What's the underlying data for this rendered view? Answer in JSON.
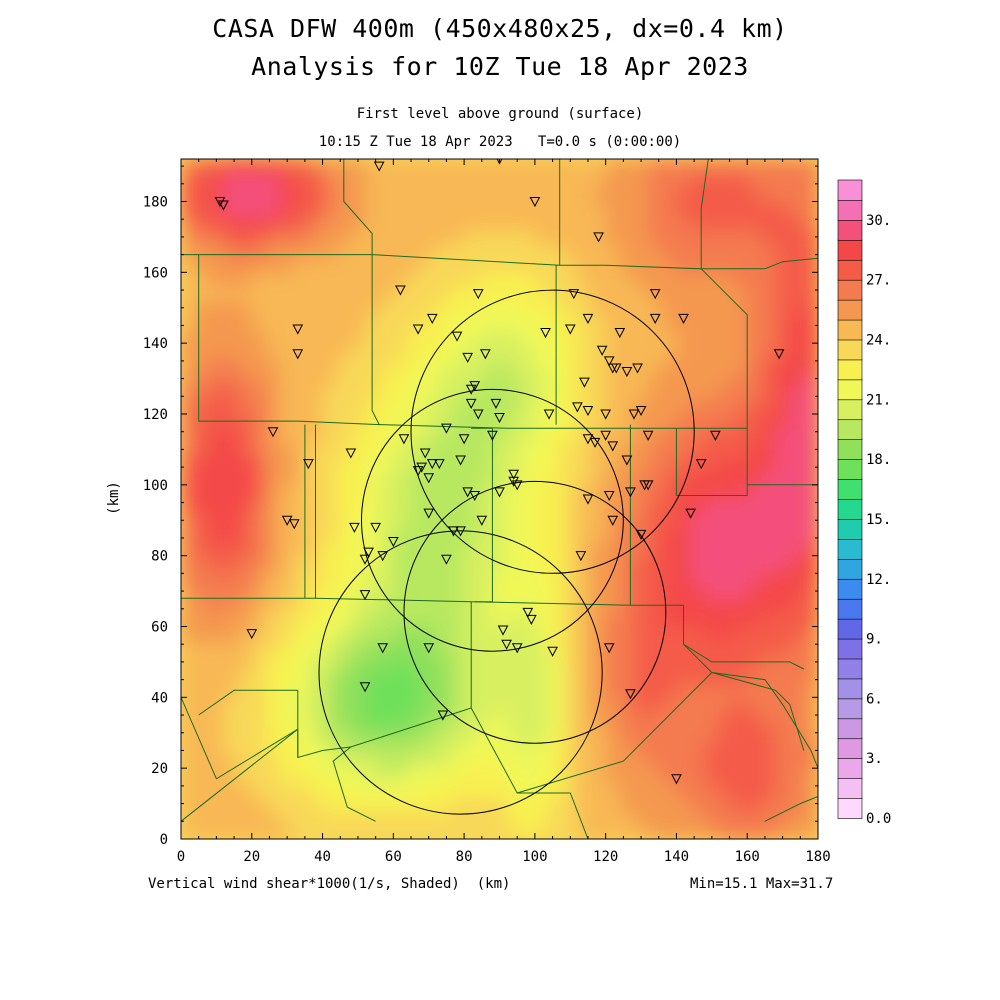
{
  "header": {
    "title_line1": "CASA DFW 400m (450x480x25, dx=0.4 km)",
    "title_line2": "Analysis for 10Z Tue 18 Apr 2023",
    "subtitle_line1": "First level above ground (surface)",
    "subtitle_line2": "10:15 Z Tue 18 Apr 2023   T=0.0 s (0:00:00)"
  },
  "footer": {
    "field_label": "Vertical wind shear*1000(1/s, Shaded)  (km)",
    "minmax": "Min=15.1 Max=31.7"
  },
  "chart_data": {
    "type": "heatmap",
    "title": "CASA DFW 400m (450x480x25, dx=0.4 km)",
    "variable": "Vertical wind shear*1000 (1/s)",
    "xlabel": "(km)",
    "ylabel": "(km)",
    "xlim": [
      0,
      180
    ],
    "ylim": [
      0,
      192
    ],
    "xticks": [
      0,
      20,
      40,
      60,
      80,
      100,
      120,
      140,
      160,
      180
    ],
    "yticks": [
      0,
      20,
      40,
      60,
      80,
      100,
      120,
      140,
      160,
      180
    ],
    "min": 15.1,
    "max": 31.7,
    "colorbar": {
      "labels": [
        "0.0",
        "3.",
        "6.",
        "9.",
        "12.",
        "15.",
        "18.",
        "21.",
        "24.",
        "27.",
        "30."
      ],
      "levels": [
        0,
        1,
        2,
        3,
        4,
        5,
        6,
        7,
        8,
        9,
        10,
        11,
        12,
        13,
        14,
        15,
        16,
        17,
        18,
        19,
        20,
        21,
        22,
        23,
        24,
        25,
        26,
        27,
        28,
        29,
        30,
        31
      ],
      "colors": [
        "#ffd8ff",
        "#f4c0f4",
        "#eaa8ea",
        "#df98e2",
        "#cc98e4",
        "#b69ae6",
        "#a391e8",
        "#9080e8",
        "#8070e6",
        "#6068e8",
        "#4a78ee",
        "#3c8cf0",
        "#30a6e0",
        "#28bcd0",
        "#20ccae",
        "#24d890",
        "#40e070",
        "#6ee05a",
        "#90e05c",
        "#b8e860",
        "#d8f060",
        "#f0f858",
        "#f8f050",
        "#f8d858",
        "#f8b854",
        "#f49850",
        "#f47a50",
        "#f45c48",
        "#f44848",
        "#f4507c",
        "#f470b4",
        "#f890d8"
      ]
    },
    "radar_circles": [
      {
        "cx": 79,
        "cy": 47,
        "r": 40
      },
      {
        "cx": 88,
        "cy": 90,
        "r": 37
      },
      {
        "cx": 105,
        "cy": 115,
        "r": 40
      },
      {
        "cx": 100,
        "cy": 64,
        "r": 37
      }
    ],
    "stations": [
      [
        11,
        180
      ],
      [
        12,
        179
      ],
      [
        56,
        190
      ],
      [
        90,
        192
      ],
      [
        100,
        180
      ],
      [
        118,
        170
      ],
      [
        62,
        155
      ],
      [
        84,
        154
      ],
      [
        111,
        154
      ],
      [
        134,
        154
      ],
      [
        33,
        144
      ],
      [
        67,
        144
      ],
      [
        71,
        147
      ],
      [
        103,
        143
      ],
      [
        110,
        144
      ],
      [
        115,
        147
      ],
      [
        124,
        143
      ],
      [
        134,
        147
      ],
      [
        142,
        147
      ],
      [
        33,
        137
      ],
      [
        78,
        142
      ],
      [
        81,
        136
      ],
      [
        86,
        137
      ],
      [
        119,
        138
      ],
      [
        121,
        135
      ],
      [
        122,
        133
      ],
      [
        123,
        133
      ],
      [
        126,
        132
      ],
      [
        129,
        133
      ],
      [
        169,
        137
      ],
      [
        82,
        127
      ],
      [
        83,
        128
      ],
      [
        114,
        129
      ],
      [
        82,
        123
      ],
      [
        84,
        120
      ],
      [
        89,
        123
      ],
      [
        90,
        119
      ],
      [
        104,
        120
      ],
      [
        112,
        122
      ],
      [
        115,
        121
      ],
      [
        120,
        120
      ],
      [
        128,
        120
      ],
      [
        130,
        121
      ],
      [
        26,
        115
      ],
      [
        63,
        113
      ],
      [
        75,
        116
      ],
      [
        80,
        113
      ],
      [
        88,
        114
      ],
      [
        115,
        113
      ],
      [
        117,
        112
      ],
      [
        120,
        114
      ],
      [
        122,
        111
      ],
      [
        132,
        114
      ],
      [
        151,
        114
      ],
      [
        36,
        106
      ],
      [
        48,
        109
      ],
      [
        69,
        109
      ],
      [
        68,
        105
      ],
      [
        71,
        106
      ],
      [
        73,
        106
      ],
      [
        79,
        107
      ],
      [
        126,
        107
      ],
      [
        147,
        106
      ],
      [
        67,
        104
      ],
      [
        70,
        102
      ],
      [
        94,
        103
      ],
      [
        131,
        100
      ],
      [
        132,
        100
      ],
      [
        81,
        98
      ],
      [
        83,
        97
      ],
      [
        90,
        98
      ],
      [
        94,
        101
      ],
      [
        95,
        100
      ],
      [
        115,
        96
      ],
      [
        121,
        97
      ],
      [
        127,
        98
      ],
      [
        30,
        90
      ],
      [
        32,
        89
      ],
      [
        49,
        88
      ],
      [
        55,
        88
      ],
      [
        70,
        92
      ],
      [
        77,
        87
      ],
      [
        79,
        87
      ],
      [
        85,
        90
      ],
      [
        122,
        90
      ],
      [
        144,
        92
      ],
      [
        130,
        86
      ],
      [
        53,
        81
      ],
      [
        57,
        80
      ],
      [
        60,
        84
      ],
      [
        75,
        79
      ],
      [
        52,
        79
      ],
      [
        113,
        80
      ],
      [
        52,
        69
      ],
      [
        98,
        64
      ],
      [
        99,
        62
      ],
      [
        20,
        58
      ],
      [
        91,
        59
      ],
      [
        92,
        55
      ],
      [
        95,
        54
      ],
      [
        57,
        54
      ],
      [
        70,
        54
      ],
      [
        105,
        53
      ],
      [
        121,
        54
      ],
      [
        127,
        41
      ],
      [
        52,
        43
      ],
      [
        74,
        35
      ],
      [
        140,
        17
      ]
    ]
  }
}
